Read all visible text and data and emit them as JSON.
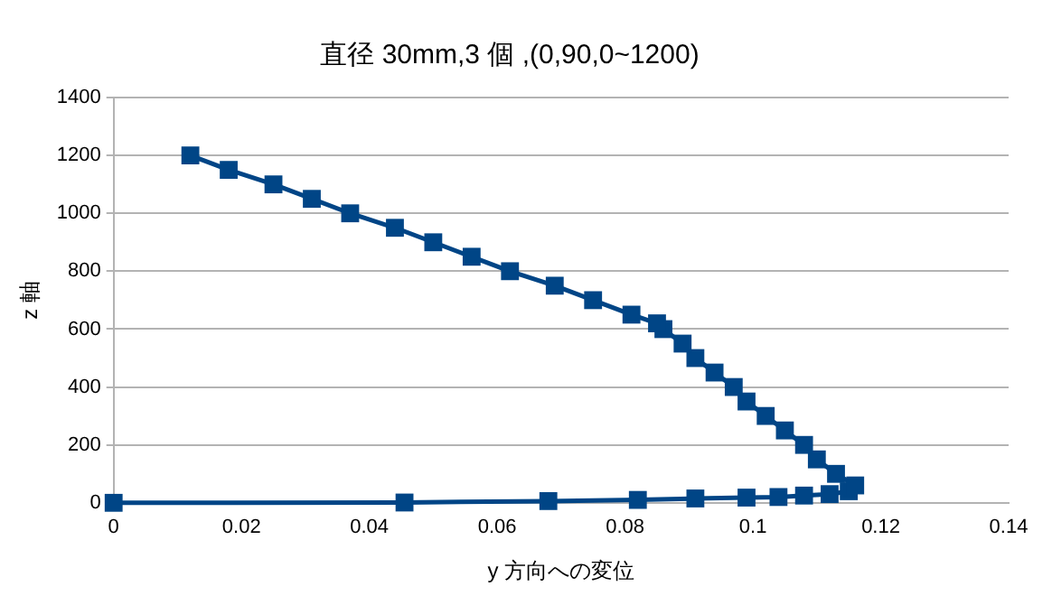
{
  "chart_data": {
    "type": "line",
    "title": "直径 30mm,3 個 ,(0,90,0~1200)",
    "xlabel": "y 方向への変位",
    "ylabel": "z 軸",
    "series": [
      {
        "color": "#004586",
        "x": [
          0,
          0.0455,
          0.068,
          0.082,
          0.091,
          0.099,
          0.104,
          0.108,
          0.112,
          0.115,
          0.116,
          0.113,
          0.11,
          0.108,
          0.105,
          0.102,
          0.099,
          0.097,
          0.094,
          0.091,
          0.089,
          0.086,
          0.085,
          0.081,
          0.075,
          0.069,
          0.062,
          0.056,
          0.05,
          0.044,
          0.037,
          0.031,
          0.025,
          0.018,
          0.012
        ],
        "values": [
          0,
          1,
          6,
          10,
          15,
          18,
          20,
          25,
          30,
          40,
          60,
          100,
          150,
          200,
          250,
          300,
          350,
          400,
          450,
          500,
          550,
          600,
          620,
          650,
          700,
          750,
          800,
          850,
          900,
          950,
          1000,
          1050,
          1100,
          1150,
          1200
        ]
      }
    ],
    "xlim": [
      0,
      0.14
    ],
    "xticks": [
      0,
      0.02,
      0.04,
      0.06,
      0.08,
      0.1,
      0.12,
      0.14
    ],
    "ylim": [
      0,
      1400
    ],
    "yticks": [
      0,
      200,
      400,
      600,
      800,
      1000,
      1200,
      1400
    ],
    "grid": "y",
    "marker": "square",
    "line_style": "solid"
  }
}
